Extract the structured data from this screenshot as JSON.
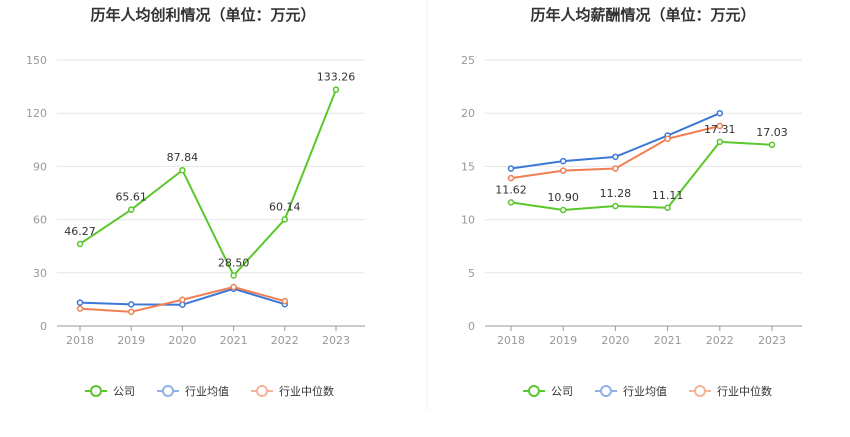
{
  "charts": [
    {
      "title": "历年人均创利情况（单位：万元）",
      "chart_data": {
        "type": "line",
        "categories": [
          "2018",
          "2019",
          "2020",
          "2021",
          "2022",
          "2023"
        ],
        "ylim": [
          0,
          150
        ],
        "yticks": [
          0,
          30,
          60,
          90,
          120,
          150
        ],
        "grid": true,
        "legend_position": "bottom",
        "series": [
          {
            "name": "公司",
            "values": [
              46.27,
              65.61,
              87.84,
              28.5,
              60.14,
              133.26
            ],
            "labels": [
              "46.27",
              "65.61",
              "87.84",
              "28.50",
              "60.14",
              "133.26"
            ],
            "color": "#5ac72b"
          },
          {
            "name": "行业均值",
            "values": [
              13.2,
              12.2,
              12.0,
              21.0,
              12.3,
              null
            ],
            "color": "#3b78d8"
          },
          {
            "name": "行业中位数",
            "values": [
              9.8,
              8.0,
              14.8,
              22.0,
              14.0,
              null
            ],
            "color": "#f07f52"
          }
        ]
      }
    },
    {
      "title": "历年人均薪酬情况（单位：万元）",
      "chart_data": {
        "type": "line",
        "categories": [
          "2018",
          "2019",
          "2020",
          "2021",
          "2022",
          "2023"
        ],
        "ylim": [
          0,
          25
        ],
        "yticks": [
          0,
          5,
          10,
          15,
          20,
          25
        ],
        "grid": true,
        "legend_position": "bottom",
        "series": [
          {
            "name": "公司",
            "values": [
              11.62,
              10.9,
              11.28,
              11.11,
              17.31,
              17.03
            ],
            "labels": [
              "11.62",
              "10.90",
              "11.28",
              "11.11",
              "17.31",
              "17.03"
            ],
            "color": "#5ac72b"
          },
          {
            "name": "行业均值",
            "values": [
              14.8,
              15.5,
              15.9,
              17.9,
              20.0,
              null
            ],
            "color": "#3b78d8"
          },
          {
            "name": "行业中位数",
            "values": [
              13.9,
              14.6,
              14.8,
              17.6,
              18.8,
              null
            ],
            "color": "#f07f52"
          }
        ]
      }
    }
  ],
  "legend": [
    {
      "name": "公司",
      "color": "#5ac72b"
    },
    {
      "name": "行业均值",
      "color": "#8fb1e6"
    },
    {
      "name": "行业中位数",
      "color": "#f4b49b"
    }
  ],
  "divider_color": "#eeeeee"
}
